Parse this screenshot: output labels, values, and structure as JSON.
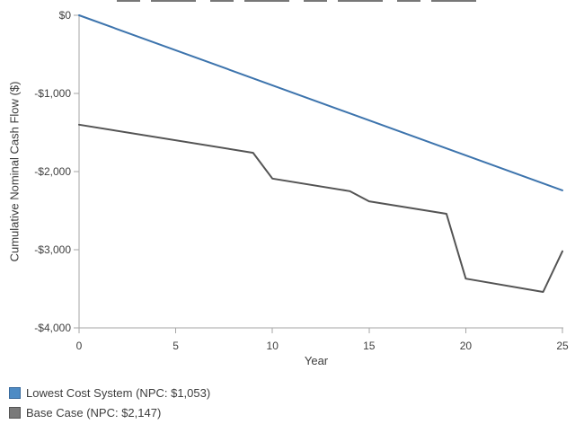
{
  "chart_data": {
    "type": "line",
    "title": "",
    "xlabel": "Year",
    "ylabel": "Cumulative Nominal Cash Flow ($)",
    "xlim": [
      0,
      25
    ],
    "ylim": [
      -4000,
      0
    ],
    "xticks": [
      0,
      5,
      10,
      15,
      20,
      25
    ],
    "xtick_labels": [
      "0",
      "5",
      "10",
      "15",
      "20",
      "25"
    ],
    "yticks": [
      0,
      -1000,
      -2000,
      -3000,
      -4000
    ],
    "ytick_labels": [
      "$0",
      "-$1,000",
      "-$2,000",
      "-$3,000",
      "-$4,000"
    ],
    "grid": false,
    "legend_position": "bottom-left",
    "axis_color": "#a6a6a6",
    "tick_label_color": "#3f3f3f",
    "series": [
      {
        "name": "Lowest Cost System",
        "npc": "$1,053",
        "legend_label": "Lowest Cost System (NPC: $1,053)",
        "color": "#3d74ad",
        "legend_fill": "#4e8bc4",
        "legend_border": "#38699c",
        "x": [
          0,
          25
        ],
        "y": [
          0,
          -2240
        ]
      },
      {
        "name": "Base Case",
        "npc": "$2,147",
        "legend_label": "Base Case (NPC: $2,147)",
        "color": "#545454",
        "legend_fill": "#7a7a7a",
        "legend_border": "#545454",
        "x": [
          0,
          9,
          10,
          14,
          15,
          19,
          20,
          24,
          25
        ],
        "y": [
          -1400,
          -1760,
          -2090,
          -2250,
          -2380,
          -2540,
          -3370,
          -3540,
          -3020
        ]
      }
    ]
  }
}
